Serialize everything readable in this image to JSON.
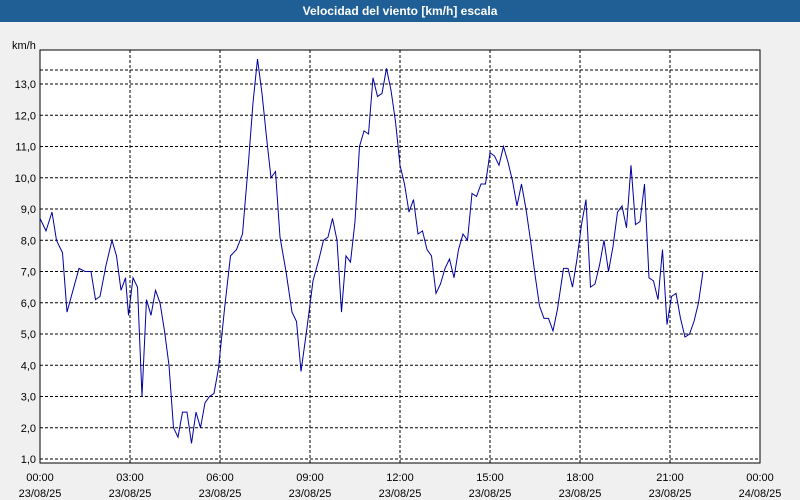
{
  "chart_data": {
    "type": "line",
    "title": "Velocidad del viento [km/h] escala",
    "ylabel": "km/h",
    "xlabel": "",
    "ylim": [
      1.0,
      14.0
    ],
    "yticks": [
      1.0,
      2.0,
      3.0,
      4.0,
      5.0,
      6.0,
      7.0,
      8.0,
      9.0,
      10.0,
      11.0,
      12.0,
      13.0
    ],
    "ytick_labels": [
      "1,0",
      "2,0",
      "3,0",
      "4,0",
      "5,0",
      "6,0",
      "7,0",
      "8,0",
      "9,0",
      "10,0",
      "11,0",
      "12,0",
      "13,0"
    ],
    "xlim": [
      0,
      24
    ],
    "xticks": [
      {
        "time": "00:00",
        "date": "23/08/25"
      },
      {
        "time": "03:00",
        "date": "23/08/25"
      },
      {
        "time": "06:00",
        "date": "23/08/25"
      },
      {
        "time": "09:00",
        "date": "23/08/25"
      },
      {
        "time": "12:00",
        "date": "23/08/25"
      },
      {
        "time": "15:00",
        "date": "23/08/25"
      },
      {
        "time": "18:00",
        "date": "23/08/25"
      },
      {
        "time": "21:00",
        "date": "23/08/25"
      },
      {
        "time": "00:00",
        "date": "24/08/25"
      }
    ],
    "grid": true,
    "line_color": "#0000a0",
    "series": [
      {
        "points": [
          [
            0.0,
            8.7
          ],
          [
            0.2,
            8.3
          ],
          [
            0.4,
            8.9
          ],
          [
            0.55,
            8.0
          ],
          [
            0.75,
            7.6
          ],
          [
            0.9,
            5.7
          ],
          [
            1.1,
            6.4
          ],
          [
            1.3,
            7.1
          ],
          [
            1.5,
            7.0
          ],
          [
            1.7,
            7.0
          ],
          [
            1.85,
            6.1
          ],
          [
            2.0,
            6.2
          ],
          [
            2.2,
            7.2
          ],
          [
            2.4,
            8.0
          ],
          [
            2.55,
            7.5
          ],
          [
            2.7,
            6.4
          ],
          [
            2.85,
            6.8
          ],
          [
            2.95,
            5.6
          ],
          [
            3.1,
            6.8
          ],
          [
            3.25,
            6.5
          ],
          [
            3.4,
            3.0
          ],
          [
            3.55,
            6.1
          ],
          [
            3.7,
            5.6
          ],
          [
            3.85,
            6.4
          ],
          [
            4.0,
            6.0
          ],
          [
            4.15,
            5.1
          ],
          [
            4.3,
            4.0
          ],
          [
            4.45,
            2.0
          ],
          [
            4.6,
            1.7
          ],
          [
            4.75,
            2.5
          ],
          [
            4.9,
            2.5
          ],
          [
            5.05,
            1.5
          ],
          [
            5.2,
            2.5
          ],
          [
            5.35,
            2.0
          ],
          [
            5.5,
            2.8
          ],
          [
            5.65,
            3.0
          ],
          [
            5.8,
            3.1
          ],
          [
            5.95,
            3.9
          ],
          [
            6.15,
            5.8
          ],
          [
            6.35,
            7.5
          ],
          [
            6.55,
            7.7
          ],
          [
            6.75,
            8.2
          ],
          [
            6.95,
            10.5
          ],
          [
            7.1,
            12.4
          ],
          [
            7.25,
            13.8
          ],
          [
            7.4,
            12.7
          ],
          [
            7.55,
            11.3
          ],
          [
            7.7,
            10.0
          ],
          [
            7.85,
            10.2
          ],
          [
            8.0,
            8.1
          ],
          [
            8.2,
            7.0
          ],
          [
            8.4,
            5.7
          ],
          [
            8.55,
            5.4
          ],
          [
            8.7,
            3.8
          ],
          [
            8.9,
            5.2
          ],
          [
            9.1,
            6.7
          ],
          [
            9.3,
            7.4
          ],
          [
            9.45,
            8.0
          ],
          [
            9.6,
            8.1
          ],
          [
            9.75,
            8.7
          ],
          [
            9.9,
            8.0
          ],
          [
            10.05,
            5.7
          ],
          [
            10.2,
            7.5
          ],
          [
            10.35,
            7.3
          ],
          [
            10.5,
            8.6
          ],
          [
            10.65,
            11.0
          ],
          [
            10.8,
            11.5
          ],
          [
            10.95,
            11.4
          ],
          [
            11.1,
            13.2
          ],
          [
            11.25,
            12.6
          ],
          [
            11.4,
            12.7
          ],
          [
            11.55,
            13.5
          ],
          [
            11.7,
            12.8
          ],
          [
            11.85,
            11.8
          ],
          [
            12.0,
            10.4
          ],
          [
            12.15,
            9.8
          ],
          [
            12.3,
            8.9
          ],
          [
            12.45,
            9.3
          ],
          [
            12.6,
            8.2
          ],
          [
            12.75,
            8.3
          ],
          [
            12.9,
            7.7
          ],
          [
            13.05,
            7.5
          ],
          [
            13.2,
            6.3
          ],
          [
            13.35,
            6.6
          ],
          [
            13.5,
            7.1
          ],
          [
            13.65,
            7.4
          ],
          [
            13.8,
            6.8
          ],
          [
            13.95,
            7.7
          ],
          [
            14.1,
            8.2
          ],
          [
            14.25,
            8.0
          ],
          [
            14.4,
            9.5
          ],
          [
            14.55,
            9.4
          ],
          [
            14.7,
            9.8
          ],
          [
            14.85,
            9.8
          ],
          [
            15.0,
            10.8
          ],
          [
            15.15,
            10.7
          ],
          [
            15.3,
            10.4
          ],
          [
            15.45,
            11.0
          ],
          [
            15.6,
            10.5
          ],
          [
            15.75,
            9.9
          ],
          [
            15.9,
            9.1
          ],
          [
            16.05,
            9.8
          ],
          [
            16.2,
            9.0
          ],
          [
            16.35,
            8.0
          ],
          [
            16.5,
            6.9
          ],
          [
            16.65,
            5.9
          ],
          [
            16.8,
            5.5
          ],
          [
            16.95,
            5.5
          ],
          [
            17.1,
            5.1
          ],
          [
            17.25,
            5.8
          ],
          [
            17.45,
            7.1
          ],
          [
            17.6,
            7.1
          ],
          [
            17.75,
            6.5
          ],
          [
            17.9,
            7.4
          ],
          [
            18.05,
            8.5
          ],
          [
            18.2,
            9.3
          ],
          [
            18.35,
            6.5
          ],
          [
            18.5,
            6.6
          ],
          [
            18.65,
            7.2
          ],
          [
            18.8,
            8.0
          ],
          [
            18.95,
            7.0
          ],
          [
            19.1,
            7.8
          ],
          [
            19.25,
            8.9
          ],
          [
            19.4,
            9.1
          ],
          [
            19.55,
            8.4
          ],
          [
            19.7,
            10.4
          ],
          [
            19.85,
            8.5
          ],
          [
            20.0,
            8.6
          ],
          [
            20.15,
            9.8
          ],
          [
            20.3,
            6.8
          ],
          [
            20.45,
            6.7
          ],
          [
            20.6,
            6.1
          ],
          [
            20.75,
            7.7
          ],
          [
            20.9,
            5.3
          ],
          [
            21.05,
            6.2
          ],
          [
            21.2,
            6.3
          ],
          [
            21.35,
            5.5
          ],
          [
            21.5,
            4.9
          ],
          [
            21.65,
            5.0
          ],
          [
            21.8,
            5.4
          ],
          [
            21.95,
            6.0
          ],
          [
            22.1,
            7.0
          ]
        ]
      }
    ]
  }
}
